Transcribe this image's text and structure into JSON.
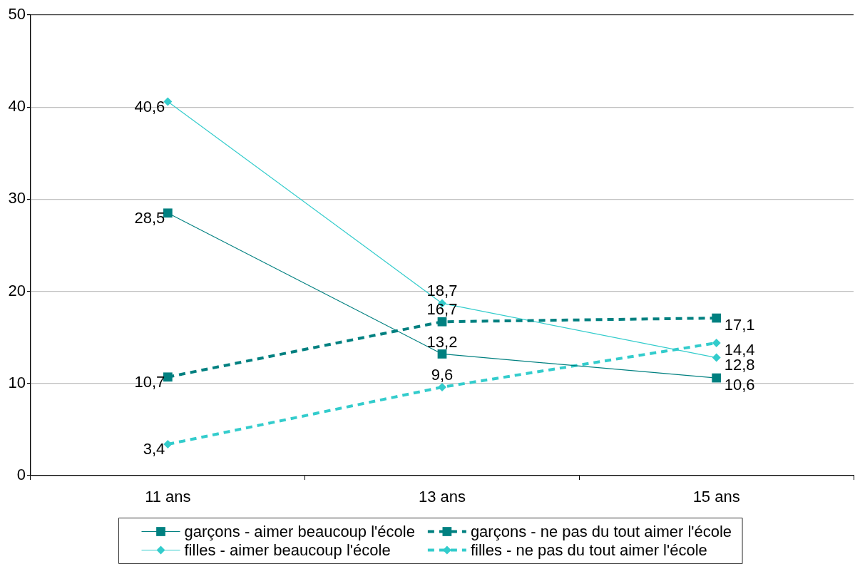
{
  "chart_data": {
    "type": "line",
    "categories": [
      "11 ans",
      "13 ans",
      "15 ans"
    ],
    "series": [
      {
        "name": "garçons - aimer beaucoup l'école",
        "color": "#008080",
        "marker": "square",
        "line_style": "solid",
        "values": [
          28.5,
          13.2,
          10.6
        ],
        "value_labels": [
          "28,5",
          "13,2",
          "10,6"
        ]
      },
      {
        "name": "garçons - ne pas du tout aimer l'école",
        "color": "#008080",
        "marker": "square",
        "line_style": "dashed",
        "values": [
          10.7,
          16.7,
          17.1
        ],
        "value_labels": [
          "10,7",
          "16,7",
          "17,1"
        ]
      },
      {
        "name": "filles - aimer beaucoup l'école",
        "color": "#33cccc",
        "marker": "diamond",
        "line_style": "solid",
        "values": [
          40.6,
          18.7,
          12.8
        ],
        "value_labels": [
          "40,6",
          "18,7",
          "12,8"
        ]
      },
      {
        "name": "filles - ne pas du tout aimer l'école",
        "color": "#33cccc",
        "marker": "diamond",
        "line_style": "dashed",
        "values": [
          3.4,
          9.6,
          14.4
        ],
        "value_labels": [
          "3,4",
          "9,6",
          "14,4"
        ]
      }
    ],
    "ylim": [
      0,
      50
    ],
    "yticks": [
      0,
      10,
      20,
      30,
      40,
      50
    ],
    "grid": "y",
    "legend": "bottom"
  }
}
